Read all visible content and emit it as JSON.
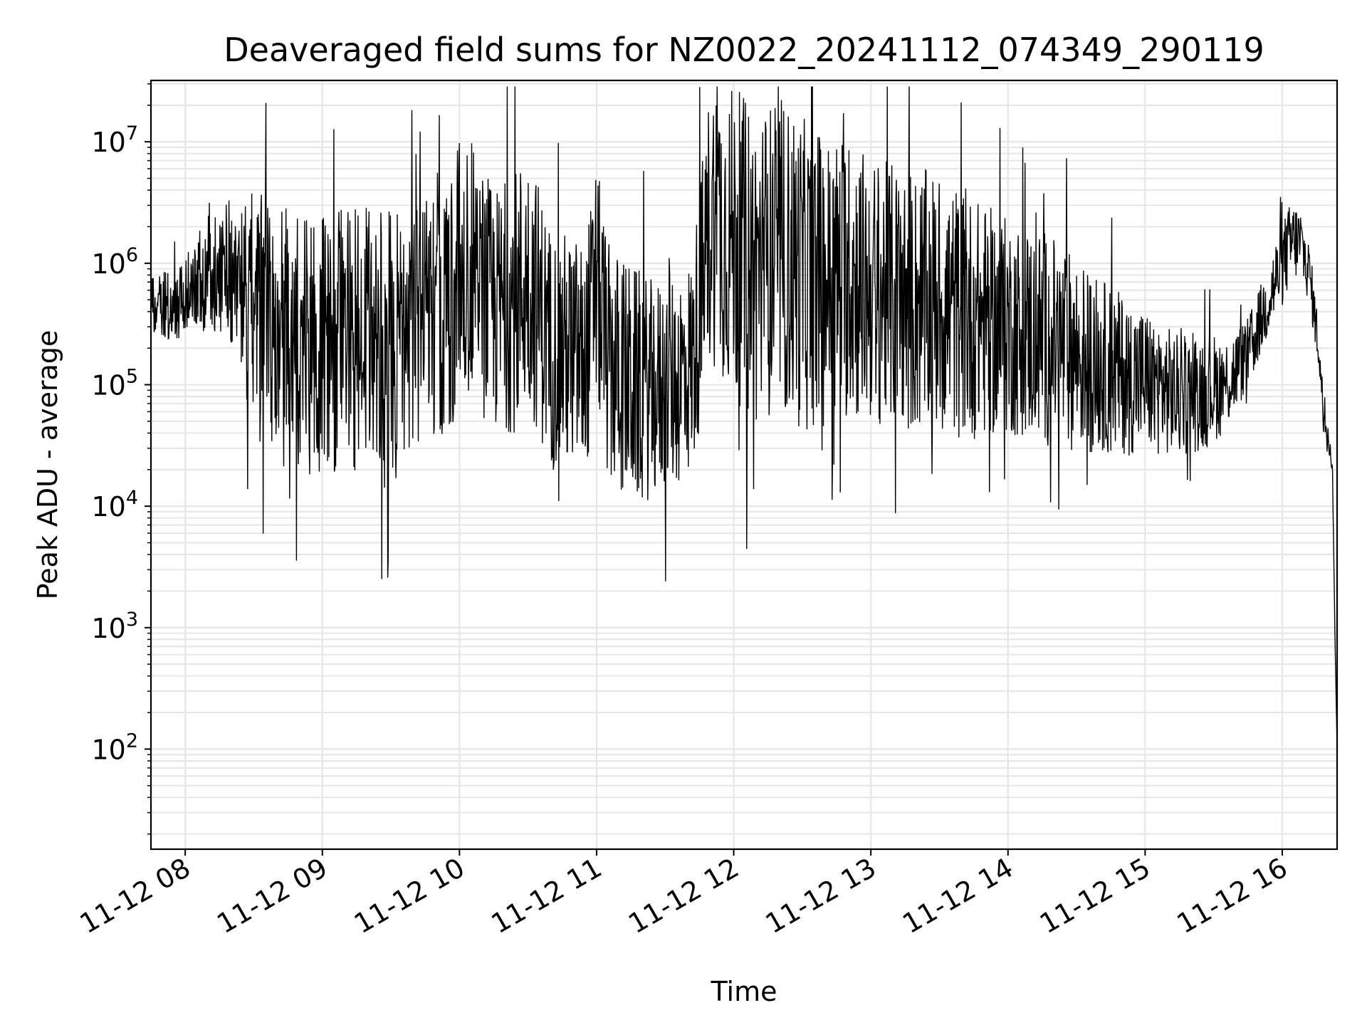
{
  "chart_data": {
    "type": "line",
    "title": "Deaveraged field sums for NZ0022_20241112_074349_290119",
    "xlabel": "Time",
    "ylabel": "Peak ADU - average",
    "yscale": "log",
    "grid": true,
    "grid_minor": true,
    "line_color": "#000000",
    "grid_color": "#e6e6e6",
    "xlim": [
      "11-12 07:45",
      "11-12 16:24"
    ],
    "ylim": [
      15,
      32000000
    ],
    "x_ticks": [
      {
        "t": "11-12 08:00",
        "label": "11-12 08"
      },
      {
        "t": "11-12 09:00",
        "label": "11-12 09"
      },
      {
        "t": "11-12 10:00",
        "label": "11-12 10"
      },
      {
        "t": "11-12 11:00",
        "label": "11-12 11"
      },
      {
        "t": "11-12 12:00",
        "label": "11-12 12"
      },
      {
        "t": "11-12 13:00",
        "label": "11-12 13"
      },
      {
        "t": "11-12 14:00",
        "label": "11-12 14"
      },
      {
        "t": "11-12 15:00",
        "label": "11-12 15"
      },
      {
        "t": "11-12 16:00",
        "label": "11-12 16"
      }
    ],
    "y_ticks": [
      {
        "value": 100,
        "base": "10",
        "exp": "2"
      },
      {
        "value": 1000,
        "base": "10",
        "exp": "3"
      },
      {
        "value": 10000,
        "base": "10",
        "exp": "4"
      },
      {
        "value": 100000,
        "base": "10",
        "exp": "5"
      },
      {
        "value": 1000000,
        "base": "10",
        "exp": "6"
      },
      {
        "value": 10000000,
        "base": "10",
        "exp": "7"
      }
    ],
    "series": [
      {
        "x": [
          "11-12 07:45",
          "11-12 07:55",
          "11-12 08:05",
          "11-12 08:10",
          "11-12 08:15",
          "11-12 08:20",
          "11-12 08:25",
          "11-12 08:30",
          "11-12 08:40",
          "11-12 08:50",
          "11-12 09:00",
          "11-12 09:10",
          "11-12 09:20",
          "11-12 09:30",
          "11-12 09:38",
          "11-12 09:45",
          "11-12 09:50",
          "11-12 09:55",
          "11-12 10:00",
          "11-12 10:05",
          "11-12 10:15",
          "11-12 10:25",
          "11-12 10:30",
          "11-12 10:40",
          "11-12 10:50",
          "11-12 10:55",
          "11-12 11:00",
          "11-12 11:05",
          "11-12 11:15",
          "11-12 11:25",
          "11-12 11:35",
          "11-12 11:42",
          "11-12 11:50",
          "11-12 12:00",
          "11-12 12:10",
          "11-12 12:20",
          "11-12 12:30",
          "11-12 12:40",
          "11-12 12:50",
          "11-12 13:00",
          "11-12 13:15",
          "11-12 13:30",
          "11-12 13:45",
          "11-12 14:00",
          "11-12 14:15",
          "11-12 14:30",
          "11-12 14:45",
          "11-12 15:00",
          "11-12 15:15",
          "11-12 15:25",
          "11-12 15:35",
          "11-12 15:45",
          "11-12 15:52",
          "11-12 15:58",
          "11-12 16:04",
          "11-12 16:08",
          "11-12 16:12",
          "11-12 16:16",
          "11-12 16:18",
          "11-12 16:20",
          "11-12 16:22",
          "11-12 16:23",
          "11-12 16:24"
        ],
        "center": [
          450000,
          450000,
          650000,
          800000,
          900000,
          700000,
          500000,
          400000,
          250000,
          230000,
          220000,
          220000,
          230000,
          250000,
          300000,
          330000,
          350000,
          400000,
          800000,
          900000,
          400000,
          500000,
          800000,
          200000,
          180000,
          150000,
          700000,
          150000,
          100000,
          90000,
          110000,
          150000,
          2500000,
          1500000,
          900000,
          1200000,
          800000,
          700000,
          800000,
          600000,
          500000,
          450000,
          350000,
          300000,
          250000,
          180000,
          130000,
          110000,
          80000,
          90000,
          100000,
          180000,
          400000,
          800000,
          1500000,
          1500000,
          800000,
          200000,
          60000,
          40000,
          20000,
          1000,
          100
        ],
        "spread": [
          0.25,
          0.3,
          0.35,
          0.5,
          0.6,
          0.6,
          0.8,
          1.0,
          1.1,
          1.1,
          1.1,
          1.1,
          1.1,
          1.1,
          1.0,
          1.0,
          1.0,
          1.0,
          1.1,
          1.1,
          1.0,
          1.1,
          1.1,
          1.0,
          1.0,
          1.0,
          1.0,
          1.0,
          1.0,
          0.9,
          0.9,
          0.9,
          1.2,
          1.3,
          1.3,
          1.3,
          1.3,
          1.2,
          1.2,
          1.1,
          1.1,
          1.1,
          1.0,
          0.9,
          0.9,
          0.8,
          0.7,
          0.6,
          0.5,
          0.5,
          0.4,
          0.3,
          0.3,
          0.35,
          0.35,
          0.3,
          0.25,
          0.2,
          0.15,
          0.1,
          0.05,
          0.0,
          0.0
        ]
      }
    ]
  }
}
